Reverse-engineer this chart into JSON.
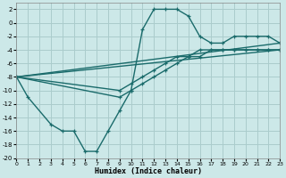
{
  "xlabel": "Humidex (Indice chaleur)",
  "bg_color": "#cce8e8",
  "grid_color": "#aacccc",
  "line_color": "#1a6b6b",
  "xlim": [
    0,
    23
  ],
  "ylim": [
    -20,
    3
  ],
  "xticks": [
    0,
    1,
    2,
    3,
    4,
    5,
    6,
    7,
    8,
    9,
    10,
    11,
    12,
    13,
    14,
    15,
    16,
    17,
    18,
    19,
    20,
    21,
    22,
    23
  ],
  "yticks": [
    -20,
    -18,
    -16,
    -14,
    -12,
    -10,
    -8,
    -6,
    -4,
    -2,
    0,
    2
  ],
  "line1_x": [
    0,
    1,
    3,
    4,
    5,
    6,
    7,
    8,
    9,
    10,
    11,
    12,
    13,
    14,
    15,
    16,
    17,
    18,
    19,
    20,
    21,
    22,
    23
  ],
  "line1_y": [
    -8,
    -11,
    -15,
    -16,
    -16,
    -19,
    -19,
    -16,
    -13,
    -10,
    -1,
    2,
    2,
    2,
    1,
    -2,
    -3,
    -3,
    -2,
    -2,
    -2,
    -2,
    -3
  ],
  "line2_x": [
    0,
    9,
    10,
    11,
    12,
    13,
    14,
    15,
    16,
    17,
    18,
    19,
    20,
    21,
    22,
    23
  ],
  "line2_y": [
    -8,
    -10,
    -9,
    -8,
    -7,
    -6,
    -5,
    -5,
    -4,
    -4,
    -4,
    -4,
    -4,
    -4,
    -4,
    -4
  ],
  "line3_x": [
    0,
    9,
    10,
    11,
    12,
    13,
    14,
    15,
    16,
    17,
    18,
    19,
    20,
    21,
    22,
    23
  ],
  "line3_y": [
    -8,
    -11,
    -10,
    -9,
    -8,
    -7,
    -6,
    -5,
    -5,
    -4,
    -4,
    -4,
    -4,
    -4,
    -4,
    -4
  ]
}
